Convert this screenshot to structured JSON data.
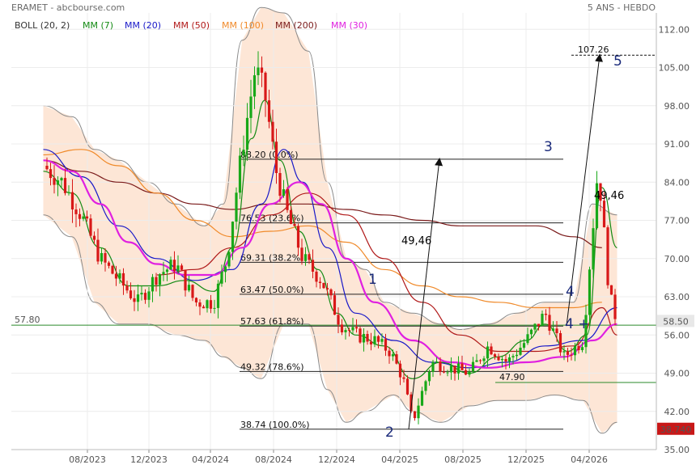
{
  "header": {
    "left_title": "ERAMET - abcbourse.com",
    "right_title": "5 ANS - HEBDO"
  },
  "legend": [
    {
      "label": "BOLL (20, 2)",
      "color": "#333333"
    },
    {
      "label": "MM (7)",
      "color": "#138a13"
    },
    {
      "label": "MM (20)",
      "color": "#1818c8"
    },
    {
      "label": "MM (50)",
      "color": "#b01818"
    },
    {
      "label": "MM (100)",
      "color": "#f08a2a"
    },
    {
      "label": "MM (200)",
      "color": "#7a1a1a"
    },
    {
      "label": "MM (30)",
      "color": "#e020e0"
    }
  ],
  "colors": {
    "up_candle": "#18a818",
    "down_candle": "#d81818",
    "bollinger_fill": "#fde6d6",
    "support_line": "#2a8a2a",
    "price_tag_bg": "#e8e8e8",
    "low_tag_bg": "#c81818"
  },
  "chart_data": {
    "type": "candlestick",
    "title": "",
    "ylim": [
      35,
      115
    ],
    "y_ticks": [
      "112.00",
      "105.00",
      "98.00",
      "91.00",
      "84.00",
      "77.00",
      "70.00",
      "63.00",
      "56.00",
      "49.00",
      "42.00",
      "35.00"
    ],
    "x_ticks": [
      "08/2023",
      "12/2023",
      "04/2024",
      "08/2024",
      "12/2024",
      "04/2025",
      "08/2025",
      "12/2025",
      "04/2026"
    ],
    "last_price": "58.50",
    "low_tag": "38.740",
    "support_level": {
      "value": 57.8,
      "label": "57.80"
    },
    "fibonacci": [
      {
        "price": 88.2,
        "label": "88.20  (0.0%)"
      },
      {
        "price": 76.53,
        "label": "76.53  (23.6%)"
      },
      {
        "price": 69.31,
        "label": "69.31  (38.2%)"
      },
      {
        "price": 63.47,
        "label": "63.47  (50.0%)"
      },
      {
        "price": 57.63,
        "label": "57.63  (61.8%)"
      },
      {
        "price": 49.32,
        "label": "49.32  (78.6%)"
      },
      {
        "price": 38.74,
        "label": "38.74  (100.0%)"
      }
    ],
    "annotations": {
      "target_label": "107.26",
      "target_value": 107.26,
      "move_left": "49,46",
      "move_right": "49,46",
      "level_4790": "47.90",
      "wave_labels": [
        "1",
        "2",
        "3",
        "4",
        "4 +",
        "5"
      ]
    },
    "series_points": {
      "price": [
        [
          2023.35,
          87
        ],
        [
          2023.45,
          84
        ],
        [
          2023.55,
          78
        ],
        [
          2023.65,
          70
        ],
        [
          2023.75,
          66
        ],
        [
          2023.85,
          62
        ],
        [
          2023.95,
          67
        ],
        [
          2024.05,
          69
        ],
        [
          2024.15,
          62
        ],
        [
          2024.25,
          62
        ],
        [
          2024.32,
          70
        ],
        [
          2024.4,
          90
        ],
        [
          2024.47,
          105
        ],
        [
          2024.52,
          100
        ],
        [
          2024.58,
          86
        ],
        [
          2024.64,
          78
        ],
        [
          2024.72,
          70
        ],
        [
          2024.82,
          66
        ],
        [
          2024.92,
          58
        ],
        [
          2025.0,
          56
        ],
        [
          2025.1,
          55
        ],
        [
          2025.18,
          53
        ],
        [
          2025.25,
          48
        ],
        [
          2025.3,
          40
        ],
        [
          2025.4,
          51
        ],
        [
          2025.5,
          50
        ],
        [
          2025.6,
          49
        ],
        [
          2025.7,
          54
        ],
        [
          2025.8,
          51
        ],
        [
          2025.9,
          55
        ],
        [
          2026.0,
          60
        ],
        [
          2026.1,
          52
        ],
        [
          2026.2,
          55
        ],
        [
          2026.28,
          87
        ],
        [
          2026.34,
          63
        ],
        [
          2026.38,
          58.5
        ]
      ],
      "mm7": [
        [
          2023.35,
          86
        ],
        [
          2023.5,
          82
        ],
        [
          2023.65,
          72
        ],
        [
          2023.8,
          65
        ],
        [
          2023.95,
          65
        ],
        [
          2024.1,
          66
        ],
        [
          2024.25,
          64
        ],
        [
          2024.35,
          72
        ],
        [
          2024.45,
          92
        ],
        [
          2024.52,
          99
        ],
        [
          2024.6,
          88
        ],
        [
          2024.7,
          75
        ],
        [
          2024.8,
          68
        ],
        [
          2024.9,
          60
        ],
        [
          2025.0,
          56
        ],
        [
          2025.15,
          54
        ],
        [
          2025.3,
          48
        ],
        [
          2025.45,
          51
        ],
        [
          2025.6,
          49
        ],
        [
          2025.75,
          52
        ],
        [
          2025.9,
          55
        ],
        [
          2026.0,
          58
        ],
        [
          2026.12,
          53
        ],
        [
          2026.22,
          56
        ],
        [
          2026.3,
          83
        ],
        [
          2026.38,
          72
        ]
      ],
      "mm20": [
        [
          2023.35,
          90
        ],
        [
          2023.55,
          85
        ],
        [
          2023.75,
          76
        ],
        [
          2023.95,
          70
        ],
        [
          2024.15,
          66
        ],
        [
          2024.35,
          68
        ],
        [
          2024.5,
          80
        ],
        [
          2024.62,
          90
        ],
        [
          2024.72,
          84
        ],
        [
          2024.85,
          72
        ],
        [
          2025.0,
          60
        ],
        [
          2025.2,
          55
        ],
        [
          2025.4,
          51
        ],
        [
          2025.6,
          50
        ],
        [
          2025.8,
          51
        ],
        [
          2026.0,
          54
        ],
        [
          2026.2,
          55
        ],
        [
          2026.38,
          61
        ]
      ],
      "mm30": [
        [
          2023.35,
          88
        ],
        [
          2023.5,
          86
        ],
        [
          2023.65,
          80
        ],
        [
          2023.8,
          73
        ],
        [
          2023.95,
          69
        ],
        [
          2024.1,
          67
        ],
        [
          2024.25,
          67
        ],
        [
          2024.4,
          72
        ],
        [
          2024.55,
          80
        ],
        [
          2024.7,
          84
        ],
        [
          2024.82,
          80
        ],
        [
          2024.95,
          70
        ],
        [
          2025.1,
          62
        ],
        [
          2025.3,
          55
        ],
        [
          2025.5,
          51
        ],
        [
          2025.7,
          50
        ],
        [
          2025.9,
          51
        ],
        [
          2026.1,
          52
        ],
        [
          2026.25,
          55
        ],
        [
          2026.38,
          58
        ]
      ],
      "mm50": [
        [
          2023.95,
          67
        ],
        [
          2024.15,
          68
        ],
        [
          2024.35,
          72
        ],
        [
          2024.55,
          78
        ],
        [
          2024.75,
          82
        ],
        [
          2024.95,
          78
        ],
        [
          2025.15,
          70
        ],
        [
          2025.35,
          62
        ],
        [
          2025.55,
          56
        ],
        [
          2025.75,
          53
        ],
        [
          2025.95,
          53
        ],
        [
          2026.15,
          54
        ],
        [
          2026.3,
          61
        ],
        [
          2026.38,
          56
        ]
      ],
      "mm100": [
        [
          2023.35,
          89
        ],
        [
          2023.55,
          90
        ],
        [
          2023.75,
          87
        ],
        [
          2023.95,
          82
        ],
        [
          2024.15,
          77
        ],
        [
          2024.35,
          74
        ],
        [
          2024.55,
          75
        ],
        [
          2024.75,
          76
        ],
        [
          2024.95,
          73
        ],
        [
          2025.15,
          68
        ],
        [
          2025.35,
          65
        ],
        [
          2025.55,
          63
        ],
        [
          2025.75,
          62
        ],
        [
          2025.95,
          61
        ],
        [
          2026.15,
          61
        ],
        [
          2026.3,
          62
        ]
      ],
      "mm200": [
        [
          2023.35,
          88
        ],
        [
          2023.55,
          86
        ],
        [
          2023.75,
          84
        ],
        [
          2023.95,
          82
        ],
        [
          2024.15,
          80
        ],
        [
          2024.35,
          79
        ],
        [
          2024.55,
          80
        ],
        [
          2024.75,
          80
        ],
        [
          2024.95,
          79
        ],
        [
          2025.15,
          78
        ],
        [
          2025.35,
          77
        ],
        [
          2025.55,
          76
        ],
        [
          2025.75,
          76
        ],
        [
          2025.95,
          76
        ],
        [
          2026.15,
          74
        ],
        [
          2026.3,
          72
        ]
      ],
      "boll_upper": [
        [
          2023.35,
          98
        ],
        [
          2023.5,
          96
        ],
        [
          2023.62,
          90
        ],
        [
          2023.75,
          88
        ],
        [
          2023.9,
          84
        ],
        [
          2024.05,
          80
        ],
        [
          2024.2,
          76
        ],
        [
          2024.3,
          80
        ],
        [
          2024.4,
          110
        ],
        [
          2024.5,
          116
        ],
        [
          2024.62,
          115
        ],
        [
          2024.75,
          108
        ],
        [
          2024.85,
          84
        ],
        [
          2024.95,
          70
        ],
        [
          2025.05,
          68
        ],
        [
          2025.15,
          62
        ],
        [
          2025.3,
          60
        ],
        [
          2025.45,
          58
        ],
        [
          2025.55,
          57
        ],
        [
          2025.7,
          58
        ],
        [
          2025.85,
          60
        ],
        [
          2026.0,
          62
        ],
        [
          2026.15,
          62
        ],
        [
          2026.25,
          80
        ],
        [
          2026.38,
          78
        ]
      ],
      "boll_lower": [
        [
          2023.35,
          78
        ],
        [
          2023.5,
          74
        ],
        [
          2023.62,
          62
        ],
        [
          2023.75,
          58
        ],
        [
          2023.9,
          58
        ],
        [
          2024.05,
          56
        ],
        [
          2024.2,
          55
        ],
        [
          2024.3,
          52
        ],
        [
          2024.4,
          50
        ],
        [
          2024.5,
          48
        ],
        [
          2024.62,
          58
        ],
        [
          2024.75,
          58
        ],
        [
          2024.85,
          46
        ],
        [
          2024.95,
          40
        ],
        [
          2025.05,
          42
        ],
        [
          2025.2,
          45
        ],
        [
          2025.3,
          42
        ],
        [
          2025.45,
          40
        ],
        [
          2025.6,
          43
        ],
        [
          2025.75,
          44
        ],
        [
          2025.9,
          44
        ],
        [
          2026.05,
          45
        ],
        [
          2026.2,
          44
        ],
        [
          2026.3,
          38
        ],
        [
          2026.38,
          40
        ]
      ]
    }
  }
}
